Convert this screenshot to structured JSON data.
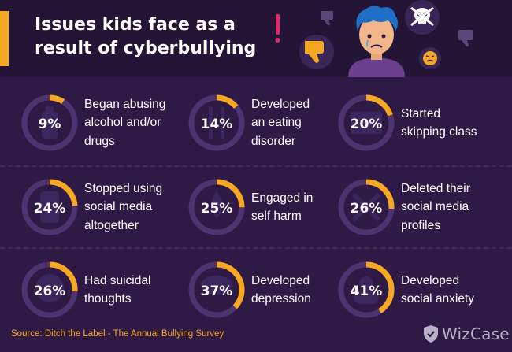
{
  "header": {
    "title_line1": "Issues kids face as a",
    "title_line2": "result of cyberbullying"
  },
  "colors": {
    "background": "#2e1a45",
    "header_background": "#241536",
    "ring_track": "#4d3470",
    "ring_progress": "#f7a823",
    "accent": "#f7a823"
  },
  "chart_data": {
    "type": "radial-progress",
    "unit": "%",
    "max": 100,
    "items": [
      {
        "label": "Began abusing alcohol and/or drugs",
        "label_lines": [
          "Began abusing",
          "alcohol and/or",
          "drugs"
        ],
        "value": 9,
        "value_label": "9%",
        "icon": "bottle-icon"
      },
      {
        "label": "Developed an eating disorder",
        "label_lines": [
          "Developed",
          "an eating",
          "disorder"
        ],
        "value": 14,
        "value_label": "14%",
        "icon": "fork-knife-icon"
      },
      {
        "label": "Started skipping class",
        "label_lines": [
          "Started",
          "skipping class"
        ],
        "value": 20,
        "value_label": "20%",
        "icon": "chalkboard-icon"
      },
      {
        "label": "Stopped using social media altogether",
        "label_lines": [
          "Stopped using",
          "social media",
          "altogether"
        ],
        "value": 24,
        "value_label": "24%",
        "icon": "phone-icon"
      },
      {
        "label": "Engaged in self harm",
        "label_lines": [
          "Engaged in",
          "self harm"
        ],
        "value": 25,
        "value_label": "25%",
        "icon": "blood-drop-icon"
      },
      {
        "label": "Deleted their social media profiles",
        "label_lines": [
          "Deleted their",
          "social media",
          "profiles"
        ],
        "value": 26,
        "value_label": "26%",
        "icon": "delete-x-icon"
      },
      {
        "label": "Had suicidal thoughts",
        "label_lines": [
          "Had suicidal",
          "thoughts"
        ],
        "value": 26,
        "value_label": "26%",
        "icon": "head-icon"
      },
      {
        "label": "Developed depression",
        "label_lines": [
          "Developed",
          "depression"
        ],
        "value": 37,
        "value_label": "37%",
        "icon": "rain-cloud-icon"
      },
      {
        "label": "Developed social anxiety",
        "label_lines": [
          "Developed",
          "social anxiety"
        ],
        "value": 41,
        "value_label": "41%",
        "icon": "people-icon"
      }
    ]
  },
  "footer": {
    "source": "Source: Ditch the Label - The Annual Bullying Survey",
    "brand": "WizCase"
  }
}
